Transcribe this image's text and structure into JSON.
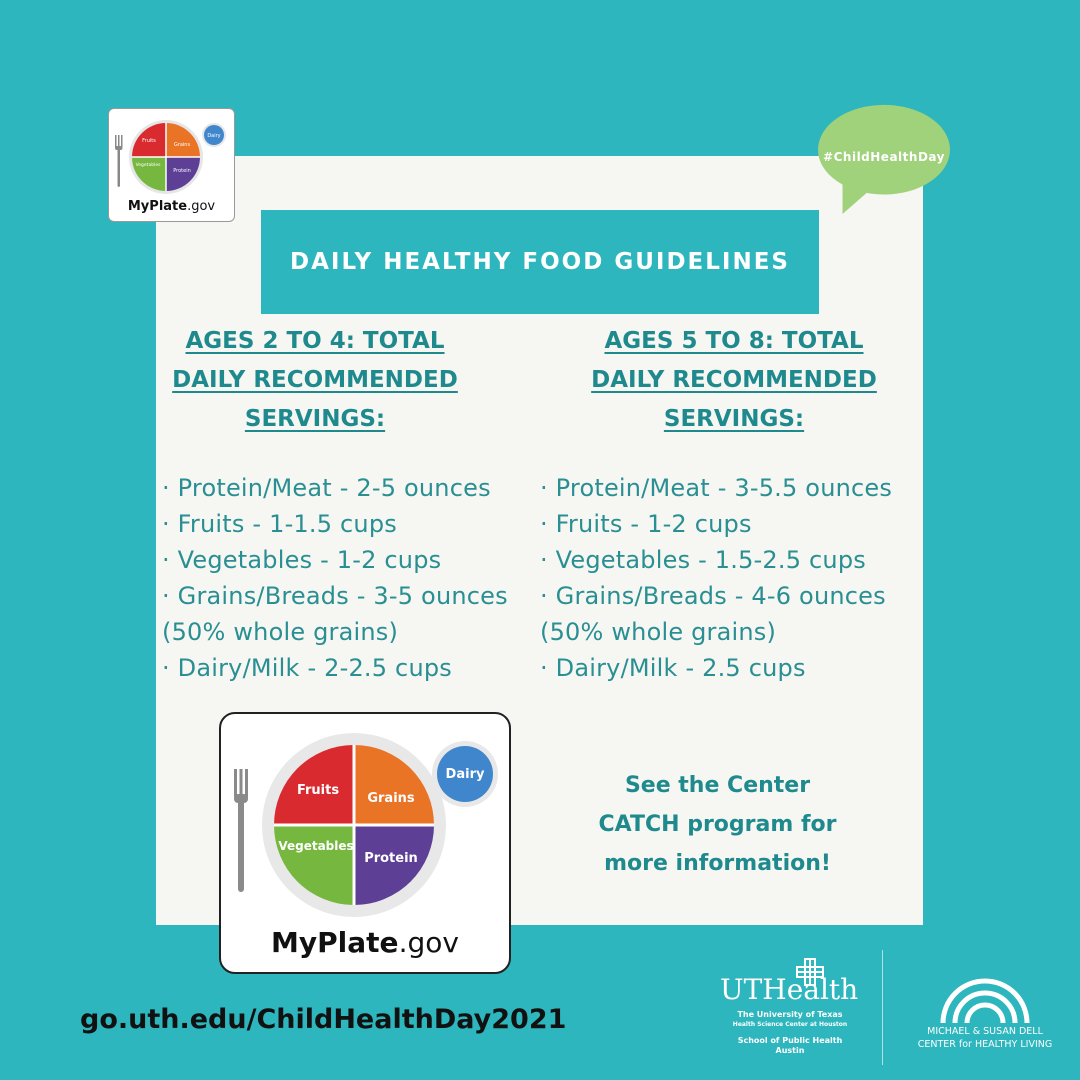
{
  "hashtag": "#ChildHealthDay",
  "banner_title": "DAILY HEALTHY FOOD GUIDELINES",
  "left_column": {
    "heading_lines": [
      "AGES 2 TO 4: TOTAL",
      "DAILY RECOMMENDED",
      "SERVINGS:"
    ],
    "items": [
      "· Protein/Meat - 2-5 ounces",
      "· Fruits - 1-1.5 cups",
      "· Vegetables - 1-2 cups",
      "· Grains/Breads - 3-5 ounces",
      "(50% whole grains)",
      "· Dairy/Milk - 2-2.5 cups"
    ]
  },
  "right_column": {
    "heading_lines": [
      "AGES 5 TO 8: TOTAL",
      "DAILY RECOMMENDED",
      "SERVINGS:"
    ],
    "items": [
      "· Protein/Meat - 3-5.5 ounces",
      "· Fruits - 1-2 cups",
      "· Vegetables - 1.5-2.5 cups",
      "· Grains/Breads - 4-6 ounces",
      "(50% whole grains)",
      "· Dairy/Milk - 2.5 cups"
    ]
  },
  "see_more_lines": [
    "See the Center",
    "CATCH program for",
    "more information!"
  ],
  "url": "go.uth.edu/ChildHealthDay2021",
  "myplate": {
    "fruits": "Fruits",
    "grains": "Grains",
    "vegetables": "Vegetables",
    "protein": "Protein",
    "dairy": "Dairy",
    "brand_bold": "MyPlate",
    "brand_suffix": ".gov"
  },
  "uthealth": {
    "name": "UTHealth",
    "line1": "The University of Texas",
    "line2": "Health Science Center at Houston",
    "line3": "School of Public Health",
    "line4": "Austin"
  },
  "dell_center": {
    "line1": "MICHAEL & SUSAN DELL",
    "line2": "CENTER for HEALTHY LIVING"
  },
  "colors": {
    "teal": "#2db6bd",
    "fruits": "#d92a30",
    "grains": "#ea7426",
    "vegetables": "#76b73f",
    "protein": "#5d3f95",
    "dairy": "#3f86cc",
    "bubble": "#9fd27a"
  }
}
